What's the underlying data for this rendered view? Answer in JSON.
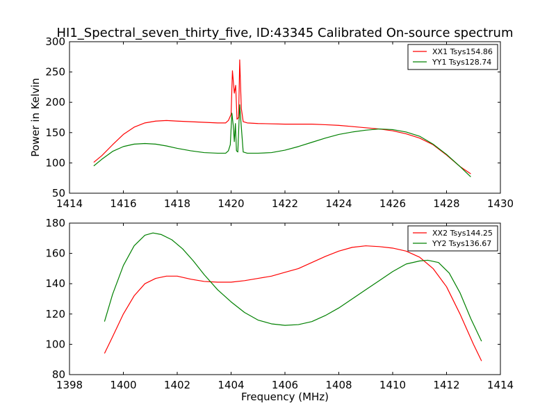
{
  "chart_data": [
    {
      "type": "line",
      "title": "HI1_Spectral_seven_thirty_five, ID:43345 Calibrated On-source spectrum",
      "xlabel": "",
      "ylabel": "Power in Kelvin",
      "xlim": [
        1414,
        1430
      ],
      "ylim": [
        50,
        300
      ],
      "xticks": [
        1414,
        1416,
        1418,
        1420,
        1422,
        1424,
        1426,
        1428,
        1430
      ],
      "yticks": [
        50,
        100,
        150,
        200,
        250,
        300
      ],
      "grid": false,
      "legend_position": "top-right",
      "series": [
        {
          "name": "XX1 Tsys154.86",
          "color": "#ff0000",
          "points": [
            [
              1414.9,
              101
            ],
            [
              1415.2,
              112
            ],
            [
              1415.6,
              130
            ],
            [
              1416.0,
              147
            ],
            [
              1416.4,
              159
            ],
            [
              1416.8,
              166
            ],
            [
              1417.2,
              169
            ],
            [
              1417.6,
              170
            ],
            [
              1418.0,
              169
            ],
            [
              1418.5,
              168
            ],
            [
              1419.0,
              167
            ],
            [
              1419.5,
              166
            ],
            [
              1419.8,
              166
            ],
            [
              1419.9,
              170
            ],
            [
              1420.0,
              180
            ],
            [
              1420.05,
              252
            ],
            [
              1420.12,
              215
            ],
            [
              1420.17,
              228
            ],
            [
              1420.22,
              172
            ],
            [
              1420.28,
              175
            ],
            [
              1420.32,
              270
            ],
            [
              1420.38,
              190
            ],
            [
              1420.45,
              168
            ],
            [
              1420.6,
              166
            ],
            [
              1421.0,
              165
            ],
            [
              1422.0,
              164
            ],
            [
              1423.0,
              164
            ],
            [
              1423.5,
              163
            ],
            [
              1424.0,
              162
            ],
            [
              1424.5,
              160
            ],
            [
              1425.0,
              158
            ],
            [
              1425.5,
              156
            ],
            [
              1426.0,
              153
            ],
            [
              1426.5,
              148
            ],
            [
              1427.0,
              141
            ],
            [
              1427.5,
              130
            ],
            [
              1428.0,
              113
            ],
            [
              1428.5,
              94
            ],
            [
              1428.9,
              82
            ]
          ]
        },
        {
          "name": "YY1 Tsys128.74",
          "color": "#008000",
          "points": [
            [
              1414.9,
              95
            ],
            [
              1415.2,
              106
            ],
            [
              1415.6,
              119
            ],
            [
              1416.0,
              127
            ],
            [
              1416.4,
              131
            ],
            [
              1416.8,
              132
            ],
            [
              1417.2,
              131
            ],
            [
              1417.6,
              128
            ],
            [
              1418.0,
              124
            ],
            [
              1418.5,
              120
            ],
            [
              1419.0,
              117
            ],
            [
              1419.5,
              116
            ],
            [
              1419.8,
              116
            ],
            [
              1419.9,
              120
            ],
            [
              1419.97,
              130
            ],
            [
              1420.03,
              182
            ],
            [
              1420.08,
              162
            ],
            [
              1420.12,
              135
            ],
            [
              1420.16,
              165
            ],
            [
              1420.2,
              120
            ],
            [
              1420.25,
              118
            ],
            [
              1420.32,
              196
            ],
            [
              1420.37,
              165
            ],
            [
              1420.45,
              118
            ],
            [
              1420.6,
              116
            ],
            [
              1421.0,
              116
            ],
            [
              1421.5,
              117
            ],
            [
              1422.0,
              121
            ],
            [
              1422.5,
              127
            ],
            [
              1423.0,
              134
            ],
            [
              1423.5,
              141
            ],
            [
              1424.0,
              147
            ],
            [
              1424.5,
              151
            ],
            [
              1425.0,
              154
            ],
            [
              1425.5,
              156
            ],
            [
              1426.0,
              155
            ],
            [
              1426.5,
              151
            ],
            [
              1427.0,
              144
            ],
            [
              1427.5,
              131
            ],
            [
              1428.0,
              114
            ],
            [
              1428.5,
              94
            ],
            [
              1428.9,
              77
            ]
          ]
        }
      ]
    },
    {
      "type": "line",
      "title": "",
      "xlabel": "Frequency (MHz)",
      "ylabel": "",
      "xlim": [
        1398,
        1414
      ],
      "ylim": [
        80,
        180
      ],
      "xticks": [
        1398,
        1400,
        1402,
        1404,
        1406,
        1408,
        1410,
        1412,
        1414
      ],
      "yticks": [
        80,
        100,
        120,
        140,
        160,
        180
      ],
      "grid": false,
      "legend_position": "top-right",
      "series": [
        {
          "name": "XX2 Tsys144.25",
          "color": "#ff0000",
          "points": [
            [
              1399.3,
              94
            ],
            [
              1399.6,
              105
            ],
            [
              1400.0,
              120
            ],
            [
              1400.4,
              132
            ],
            [
              1400.8,
              140
            ],
            [
              1401.2,
              143.5
            ],
            [
              1401.6,
              145
            ],
            [
              1402.0,
              145
            ],
            [
              1402.5,
              143
            ],
            [
              1403.0,
              141.5
            ],
            [
              1403.5,
              141
            ],
            [
              1404.0,
              141
            ],
            [
              1404.5,
              142
            ],
            [
              1405.0,
              143.5
            ],
            [
              1405.5,
              145
            ],
            [
              1406.0,
              147.5
            ],
            [
              1406.5,
              150
            ],
            [
              1407.0,
              154
            ],
            [
              1407.5,
              158
            ],
            [
              1408.0,
              161.5
            ],
            [
              1408.5,
              164
            ],
            [
              1409.0,
              165
            ],
            [
              1409.5,
              164.5
            ],
            [
              1410.0,
              163.5
            ],
            [
              1410.5,
              161.5
            ],
            [
              1411.0,
              157.5
            ],
            [
              1411.5,
              150
            ],
            [
              1412.0,
              138
            ],
            [
              1412.5,
              120
            ],
            [
              1413.0,
              100
            ],
            [
              1413.3,
              89
            ]
          ]
        },
        {
          "name": "YY2 Tsys136.67",
          "color": "#008000",
          "points": [
            [
              1399.3,
              115
            ],
            [
              1399.6,
              133
            ],
            [
              1400.0,
              152
            ],
            [
              1400.4,
              165
            ],
            [
              1400.8,
              172
            ],
            [
              1401.1,
              173.5
            ],
            [
              1401.4,
              172.5
            ],
            [
              1401.8,
              169
            ],
            [
              1402.2,
              163
            ],
            [
              1402.6,
              155
            ],
            [
              1403.0,
              146
            ],
            [
              1403.5,
              136
            ],
            [
              1404.0,
              128
            ],
            [
              1404.5,
              121
            ],
            [
              1405.0,
              116
            ],
            [
              1405.5,
              113.5
            ],
            [
              1406.0,
              112.5
            ],
            [
              1406.5,
              113
            ],
            [
              1407.0,
              115
            ],
            [
              1407.5,
              119
            ],
            [
              1408.0,
              124
            ],
            [
              1408.5,
              130
            ],
            [
              1409.0,
              136
            ],
            [
              1409.5,
              142
            ],
            [
              1410.0,
              148
            ],
            [
              1410.5,
              153
            ],
            [
              1411.0,
              155
            ],
            [
              1411.3,
              155.5
            ],
            [
              1411.7,
              154
            ],
            [
              1412.1,
              147
            ],
            [
              1412.5,
              134
            ],
            [
              1412.9,
              117
            ],
            [
              1413.3,
              102
            ]
          ]
        }
      ]
    }
  ]
}
